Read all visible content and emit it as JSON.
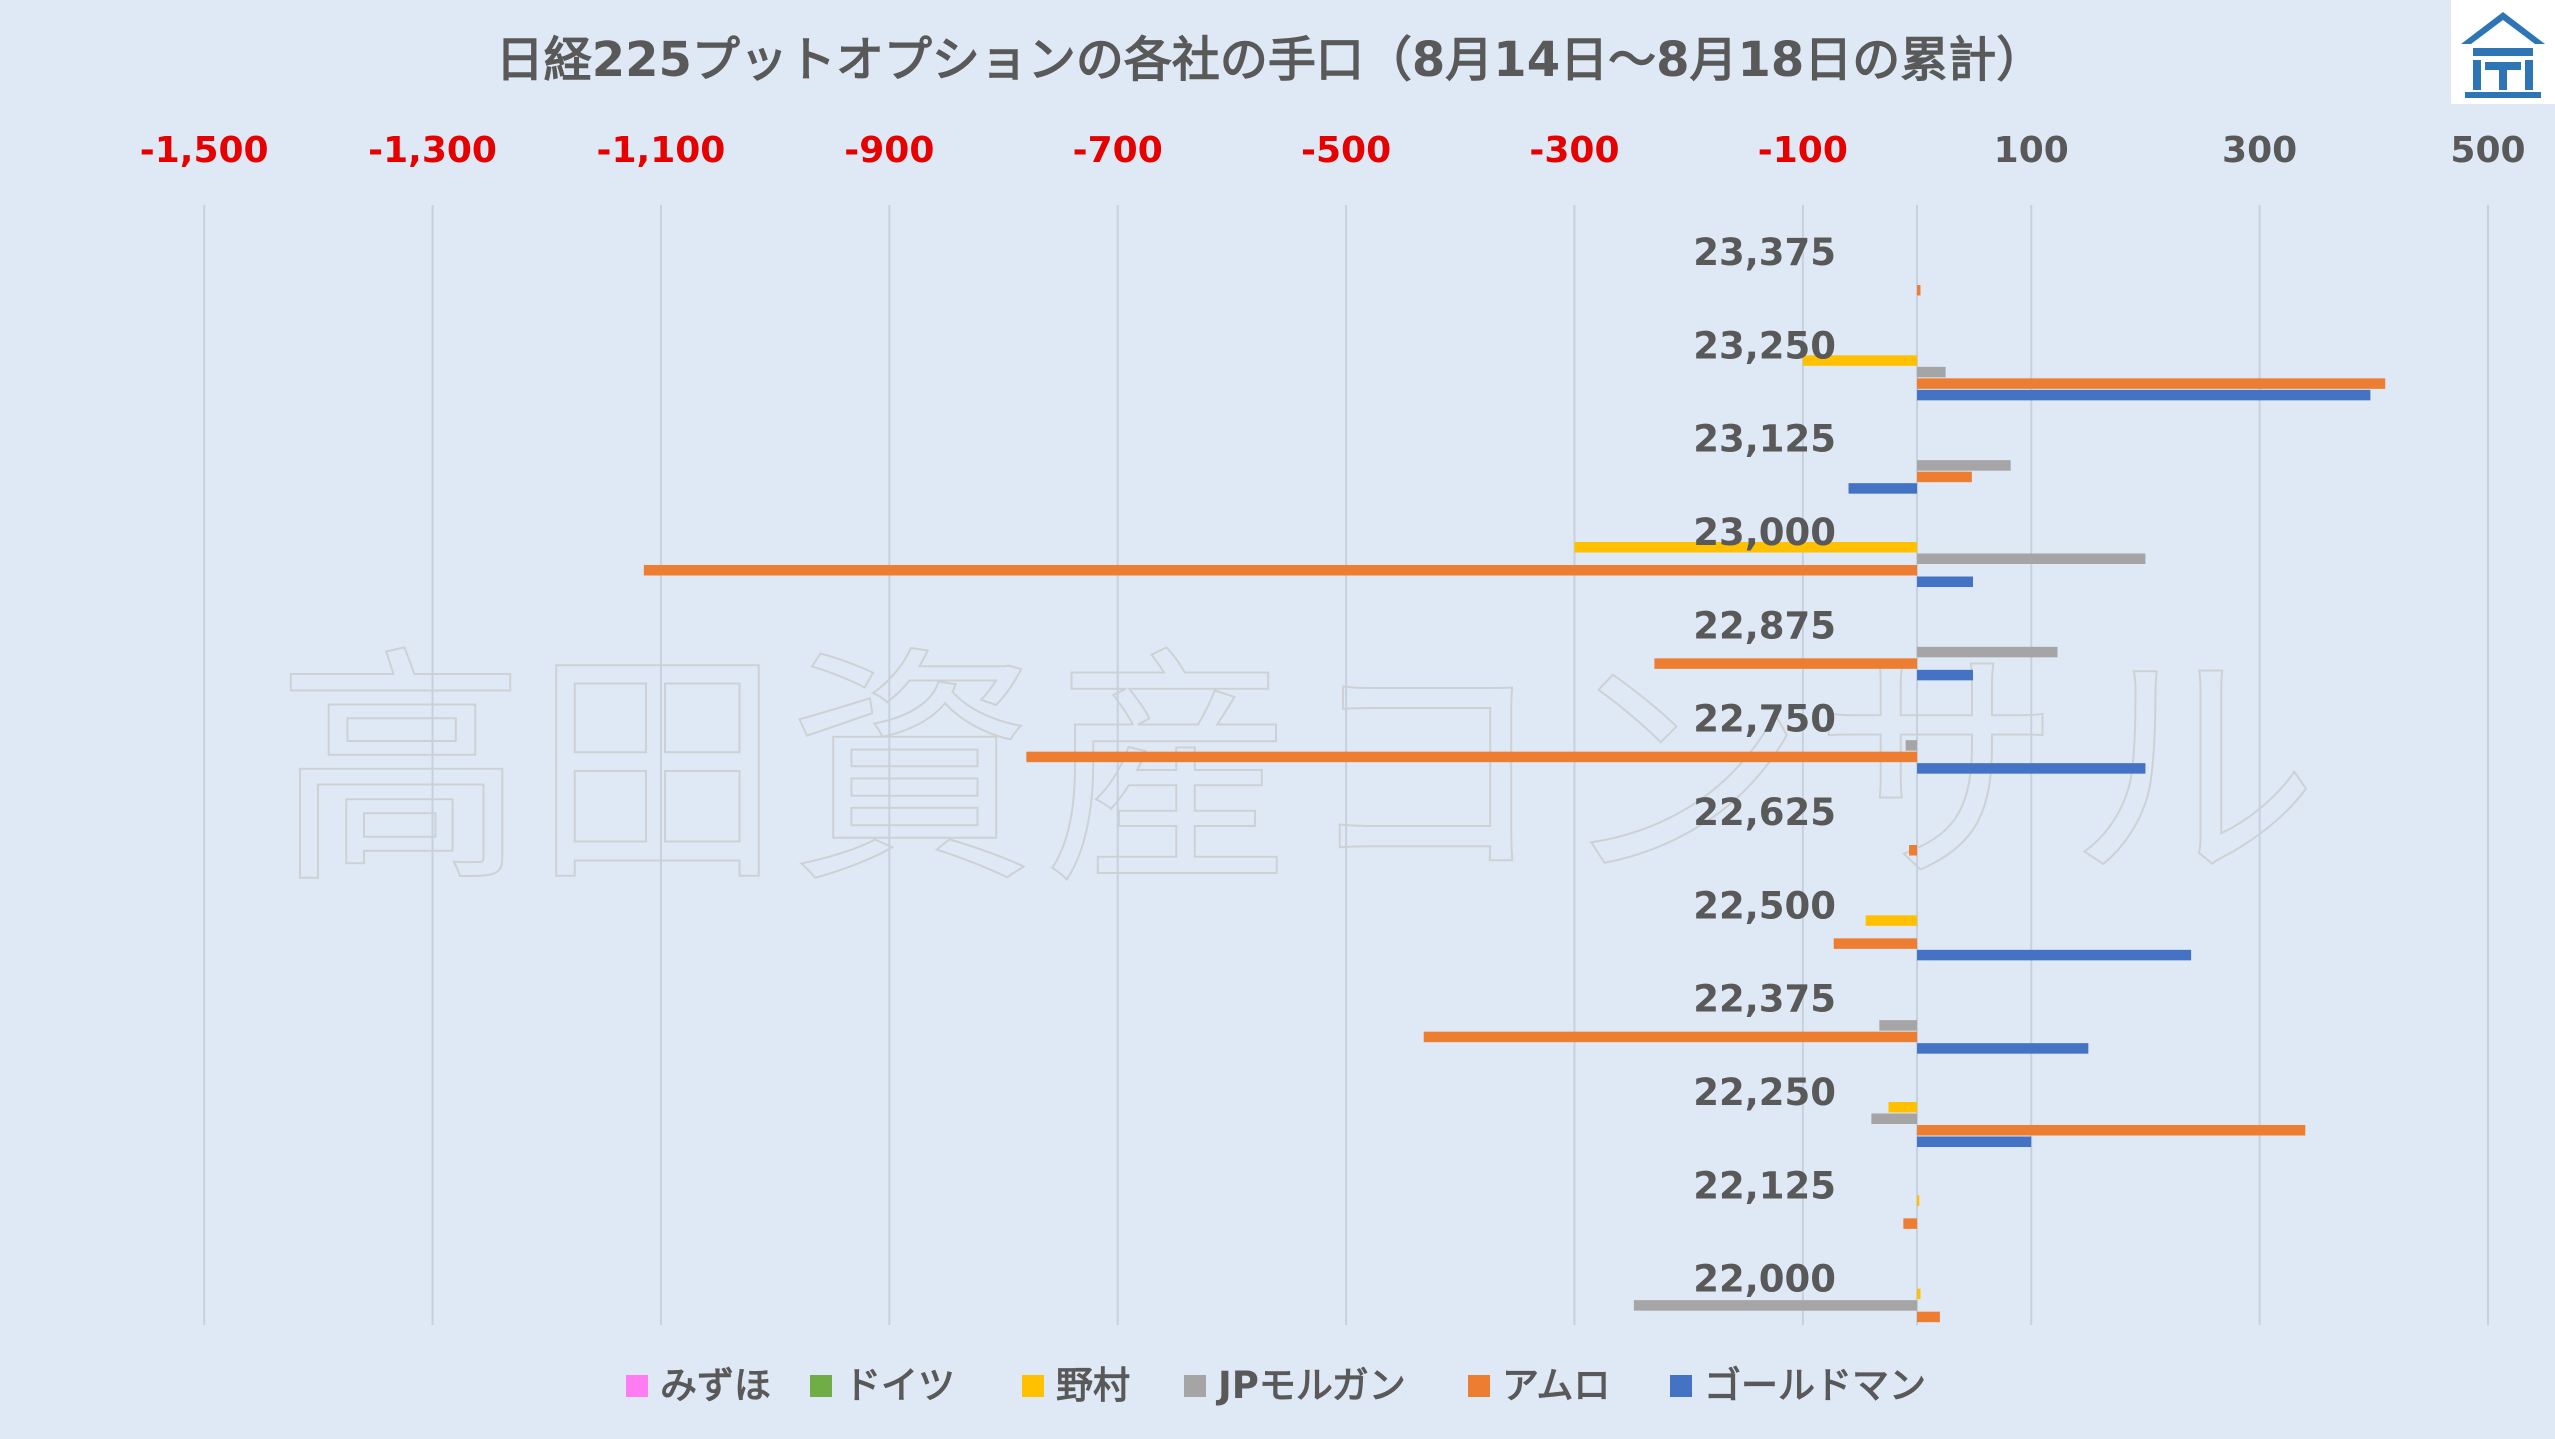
{
  "chart_data": {
    "type": "bar",
    "orientation": "horizontal",
    "title": "日経225プットオプションの各社の手口（8月14日～8月18日の累計）",
    "watermark": "高田資産コンサル",
    "xlim": [
      -1600,
      500
    ],
    "xticks": [
      -1500,
      -1300,
      -1100,
      -900,
      -700,
      -500,
      -300,
      -100,
      100,
      300,
      500
    ],
    "xtick_labels": [
      "-1,500",
      "-1,300",
      "-1,100",
      "-900",
      "-700",
      "-500",
      "-300",
      "-100",
      "100",
      "300",
      "500"
    ],
    "categories": [
      "23,375",
      "23,250",
      "23,125",
      "23,000",
      "22,875",
      "22,750",
      "22,625",
      "22,500",
      "22,375",
      "22,250",
      "22,125",
      "22,000"
    ],
    "series": [
      {
        "name": "みずほ",
        "color": "#ff7cf2",
        "values": [
          0,
          0,
          0,
          0,
          0,
          0,
          0,
          0,
          0,
          0,
          0,
          0
        ]
      },
      {
        "name": "ドイツ",
        "color": "#70ad47",
        "values": [
          0,
          0,
          0,
          0,
          0,
          0,
          0,
          0,
          0,
          0,
          0,
          0
        ]
      },
      {
        "name": "野村",
        "color": "#ffc000",
        "values": [
          0,
          -100,
          0,
          -300,
          0,
          0,
          0,
          -45,
          0,
          -25,
          2,
          3
        ]
      },
      {
        "name": "JPモルガン",
        "color": "#a5a5a5",
        "values": [
          0,
          25,
          82,
          200,
          123,
          -10,
          0,
          0,
          -33,
          -40,
          0,
          -248
        ]
      },
      {
        "name": "アムロ",
        "color": "#ed7d31",
        "values": [
          3,
          410,
          48,
          -1115,
          -230,
          -780,
          -7,
          -73,
          -432,
          340,
          -12,
          20
        ]
      },
      {
        "name": "ゴールドマン",
        "color": "#4472c4",
        "values": [
          0,
          397,
          -60,
          49,
          49,
          200,
          0,
          240,
          150,
          100,
          0,
          0
        ]
      }
    ],
    "legend_position": "bottom",
    "grid": "vertical"
  }
}
